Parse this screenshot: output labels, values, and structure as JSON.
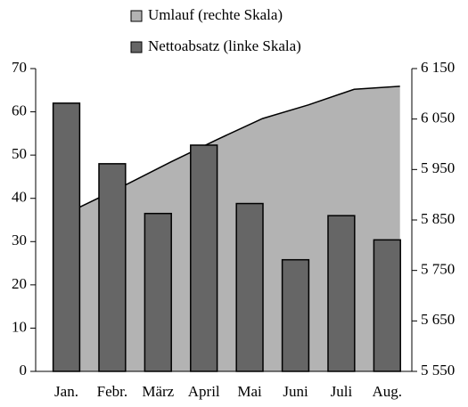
{
  "chart_data": {
    "type": "bar",
    "categories": [
      "Jan.",
      "Febr.",
      "März",
      "April",
      "Mai",
      "Juni",
      "Juli",
      "Aug."
    ],
    "series": [
      {
        "name": "Umlauf (rechte Skala)",
        "type": "area",
        "axis": "y2",
        "color": "#b3b3b3",
        "values": [
          5875,
          5919,
          5965,
          6009,
          6051,
          6078,
          6109,
          6115
        ]
      },
      {
        "name": "Nettoabsatz (linke Skala)",
        "type": "bar",
        "color": "#666666",
        "values": [
          62,
          48,
          36.5,
          52.3,
          38.8,
          25.8,
          36,
          30.4
        ]
      }
    ],
    "ylim": [
      0,
      70
    ],
    "yticks": [
      0,
      10,
      20,
      30,
      40,
      50,
      60,
      70
    ],
    "y2lim": [
      5550,
      6150
    ],
    "y2ticks": [
      {
        "value": 5550,
        "label": "5 550"
      },
      {
        "value": 5650,
        "label": "5 650"
      },
      {
        "value": 5750,
        "label": "5 750"
      },
      {
        "value": 5850,
        "label": "5 850"
      },
      {
        "value": 5950,
        "label": "5 950"
      },
      {
        "value": 6050,
        "label": "6 050"
      },
      {
        "value": 6150,
        "label": "6 150"
      }
    ],
    "legend": "top"
  }
}
